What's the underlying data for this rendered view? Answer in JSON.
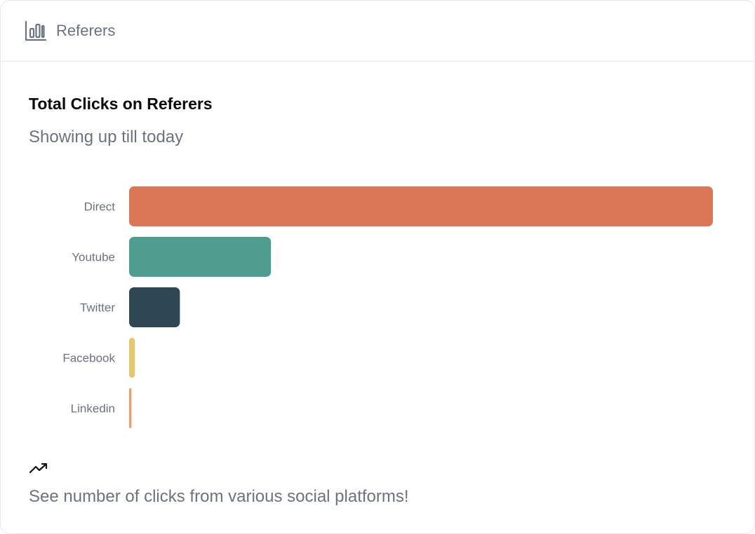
{
  "header": {
    "title": "Referers",
    "icon": "bar-chart-icon"
  },
  "content": {
    "title": "Total Clicks on Referers",
    "subtitle": "Showing up till today"
  },
  "chart_data": {
    "type": "bar",
    "orientation": "horizontal",
    "categories": [
      "Direct",
      "Youtube",
      "Twitter",
      "Facebook",
      "Linkedin"
    ],
    "values": [
      1000,
      243,
      87,
      10,
      4
    ],
    "colors": [
      "#d97757",
      "#4f9d8f",
      "#2e4753",
      "#e3c870",
      "#e8a06a"
    ],
    "xlim": [
      0,
      1000
    ],
    "grid": false,
    "legend": "none"
  },
  "footer": {
    "icon": "trending-up-icon",
    "text": "See number of clicks from various social platforms!"
  }
}
